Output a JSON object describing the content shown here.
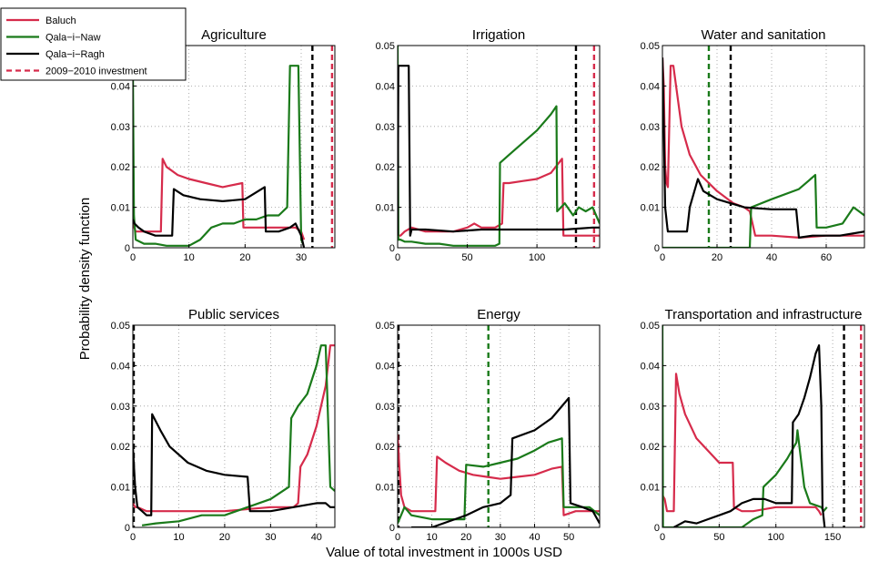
{
  "figure": {
    "ylabel": "Probability density function",
    "xlabel": "Value of total investment in 1000s USD"
  },
  "legend": {
    "entries": [
      {
        "label": "Baluch",
        "color": "#d62b4b",
        "style": "solid"
      },
      {
        "label": "Qala−i−Naw",
        "color": "#1a7a1a",
        "style": "solid"
      },
      {
        "label": "Qala−i−Ragh",
        "color": "#000000",
        "style": "solid"
      },
      {
        "label": "2009−2010 investment",
        "color": "#d62b4b",
        "style": "dashed"
      }
    ]
  },
  "chart_data": [
    {
      "type": "line",
      "title": "Agriculture",
      "xlim": [
        0,
        36
      ],
      "ylim": [
        0,
        0.05
      ],
      "xticks": [
        0,
        10,
        20,
        30
      ],
      "yticks": [
        0,
        0.01,
        0.02,
        0.03,
        0.04,
        0.05
      ],
      "yticklabels": [
        "0",
        "0.01",
        "0.02",
        "0.03",
        "0.04",
        ""
      ],
      "series": [
        {
          "name": "Baluch",
          "x": [
            0,
            0.5,
            1,
            2,
            3,
            4,
            5,
            5.3,
            6,
            8,
            10,
            13,
            16,
            19.5,
            19.7,
            22,
            25,
            28,
            29,
            30,
            30.5
          ],
          "y": [
            0.006,
            0.004,
            0.004,
            0.004,
            0.004,
            0.004,
            0.004,
            0.022,
            0.02,
            0.018,
            0.017,
            0.016,
            0.015,
            0.016,
            0.005,
            0.005,
            0.005,
            0.005,
            0.005,
            0.004,
            0.002
          ]
        },
        {
          "name": "Qala−i−Naw",
          "x": [
            0,
            0.2,
            0.5,
            2,
            4,
            6,
            8,
            10,
            12,
            14,
            16,
            18,
            20,
            22,
            24,
            26,
            27.5,
            28,
            29.5,
            30,
            30.3
          ],
          "y": [
            0.045,
            0.008,
            0.002,
            0.001,
            0.001,
            0.0005,
            0.0005,
            0.0005,
            0.002,
            0.005,
            0.006,
            0.006,
            0.007,
            0.007,
            0.008,
            0.008,
            0.01,
            0.045,
            0.045,
            0.002,
            0.001
          ]
        },
        {
          "name": "Qala−i−Ragh",
          "x": [
            0,
            0.3,
            1,
            2,
            4,
            6,
            7,
            7.3,
            9,
            12,
            16,
            20,
            23.5,
            23.7,
            26,
            28,
            29,
            30,
            30.5
          ],
          "y": [
            0.007,
            0.006,
            0.005,
            0.004,
            0.003,
            0.003,
            0.003,
            0.0145,
            0.013,
            0.012,
            0.0115,
            0.012,
            0.015,
            0.004,
            0.004,
            0.005,
            0.006,
            0.003,
            0.0
          ]
        }
      ],
      "vlines": [
        {
          "x": 32,
          "color": "#000000"
        },
        {
          "x": 35.5,
          "color": "#d62b4b"
        }
      ]
    },
    {
      "type": "line",
      "title": "Irrigation",
      "xlim": [
        0,
        145
      ],
      "ylim": [
        0,
        0.05
      ],
      "xticks": [
        0,
        50,
        100
      ],
      "yticks": [
        0,
        0.01,
        0.02,
        0.03,
        0.04,
        0.05
      ],
      "yticklabels": [
        "0",
        "0.01",
        "0.02",
        "0.03",
        "0.04",
        "0.05"
      ],
      "series": [
        {
          "name": "Baluch",
          "x": [
            0,
            2,
            5,
            10,
            20,
            30,
            40,
            50,
            55,
            60,
            65,
            70,
            75,
            76,
            80,
            90,
            100,
            110,
            118,
            119,
            125,
            135,
            145
          ],
          "y": [
            0.003,
            0.003,
            0.004,
            0.005,
            0.004,
            0.004,
            0.004,
            0.005,
            0.006,
            0.005,
            0.005,
            0.005,
            0.006,
            0.016,
            0.016,
            0.0165,
            0.017,
            0.0185,
            0.022,
            0.003,
            0.003,
            0.003,
            0.003
          ]
        },
        {
          "name": "Qala−i−Naw",
          "x": [
            0,
            0.5,
            2,
            5,
            10,
            20,
            30,
            40,
            60,
            70,
            73,
            73.5,
            80,
            90,
            100,
            110,
            114,
            114.5,
            120,
            126,
            130,
            135,
            140,
            145
          ],
          "y": [
            0.05,
            0.002,
            0.002,
            0.0015,
            0.0015,
            0.001,
            0.001,
            0.0005,
            0.0005,
            0.0005,
            0.001,
            0.021,
            0.023,
            0.026,
            0.029,
            0.033,
            0.035,
            0.009,
            0.011,
            0.008,
            0.01,
            0.009,
            0.01,
            0.006
          ]
        },
        {
          "name": "Qala−i−Ragh",
          "x": [
            0,
            0.5,
            1,
            8,
            9,
            10,
            20,
            40,
            60,
            80,
            100,
            120,
            140,
            145
          ],
          "y": [
            0.003,
            0.045,
            0.045,
            0.045,
            0.003,
            0.0045,
            0.0045,
            0.004,
            0.0045,
            0.0045,
            0.0045,
            0.0045,
            0.005,
            0.005
          ]
        }
      ],
      "vlines": [
        {
          "x": 128,
          "color": "#000000"
        },
        {
          "x": 141,
          "color": "#d62b4b"
        }
      ]
    },
    {
      "type": "line",
      "title": "Water and sanitation",
      "xlim": [
        0,
        74
      ],
      "ylim": [
        0,
        0.05
      ],
      "xticks": [
        0,
        20,
        40,
        60
      ],
      "yticks": [
        0,
        0.01,
        0.02,
        0.03,
        0.04,
        0.05
      ],
      "yticklabels": [
        "0",
        "0.01",
        "0.02",
        "0.03",
        "0.04",
        "0.05"
      ],
      "series": [
        {
          "name": "Baluch",
          "x": [
            0,
            0.5,
            1,
            1.5,
            2,
            3,
            4,
            5,
            7,
            10,
            14,
            20,
            26,
            30,
            32,
            34,
            40,
            50,
            60,
            74
          ],
          "y": [
            0.047,
            0.04,
            0.02,
            0.016,
            0.015,
            0.045,
            0.045,
            0.04,
            0.03,
            0.023,
            0.018,
            0.014,
            0.011,
            0.01,
            0.009,
            0.003,
            0.003,
            0.0025,
            0.003,
            0.003
          ]
        },
        {
          "name": "Qala−i−Naw",
          "x": [
            0,
            32,
            32.5,
            40,
            50,
            56,
            56.5,
            60,
            66,
            70,
            72,
            74
          ],
          "y": [
            0.0,
            0.0,
            0.01,
            0.012,
            0.0145,
            0.018,
            0.005,
            0.005,
            0.006,
            0.01,
            0.009,
            0.008
          ]
        },
        {
          "name": "Qala−i−Ragh",
          "x": [
            0,
            0.5,
            1,
            1.8,
            2,
            5,
            6,
            9,
            10,
            13,
            15,
            20,
            30,
            40,
            49,
            50,
            55,
            65,
            74
          ],
          "y": [
            0.047,
            0.03,
            0.01,
            0.005,
            0.004,
            0.004,
            0.004,
            0.004,
            0.01,
            0.017,
            0.014,
            0.012,
            0.01,
            0.0095,
            0.0095,
            0.0025,
            0.003,
            0.003,
            0.004
          ]
        }
      ],
      "vlines": [
        {
          "x": 17,
          "color": "#1a7a1a"
        },
        {
          "x": 25,
          "color": "#000000"
        }
      ]
    },
    {
      "type": "line",
      "title": "Public services",
      "xlim": [
        0,
        44
      ],
      "ylim": [
        0,
        0.05
      ],
      "xticks": [
        0,
        10,
        20,
        30,
        40
      ],
      "yticks": [
        0,
        0.01,
        0.02,
        0.03,
        0.04,
        0.05
      ],
      "yticklabels": [
        "0",
        "0.01",
        "0.02",
        "0.03",
        "0.04",
        "0.05"
      ],
      "series": [
        {
          "name": "Baluch",
          "x": [
            0,
            0.5,
            1,
            3,
            5,
            10,
            20,
            30,
            35,
            36,
            36.5,
            38,
            40,
            42,
            43,
            44
          ],
          "y": [
            0.006,
            0.005,
            0.005,
            0.004,
            0.004,
            0.004,
            0.004,
            0.005,
            0.005,
            0.006,
            0.015,
            0.018,
            0.025,
            0.035,
            0.045,
            0.045
          ]
        },
        {
          "name": "Qala−i−Naw",
          "x": [
            2,
            5,
            10,
            15,
            20,
            25,
            30,
            34,
            34.5,
            36,
            38,
            40,
            41,
            42,
            43,
            44
          ],
          "y": [
            0.0005,
            0.001,
            0.0015,
            0.003,
            0.003,
            0.005,
            0.007,
            0.01,
            0.027,
            0.03,
            0.033,
            0.04,
            0.045,
            0.045,
            0.01,
            0.009
          ]
        },
        {
          "name": "Qala−i−Ragh",
          "x": [
            0,
            0.5,
            1,
            2,
            3,
            4,
            4.2,
            6,
            8,
            12,
            16,
            20,
            25,
            25.5,
            30,
            35,
            40,
            42,
            43,
            44
          ],
          "y": [
            0.02,
            0.01,
            0.005,
            0.004,
            0.003,
            0.003,
            0.028,
            0.024,
            0.02,
            0.016,
            0.014,
            0.013,
            0.0125,
            0.004,
            0.004,
            0.005,
            0.006,
            0.006,
            0.005,
            0.005
          ]
        }
      ],
      "vlines": [
        {
          "x": 0,
          "color": "#000000"
        }
      ]
    },
    {
      "type": "line",
      "title": "Energy",
      "xlim": [
        0,
        59
      ],
      "ylim": [
        0,
        0.05
      ],
      "xticks": [
        0,
        10,
        20,
        30,
        40,
        50
      ],
      "yticks": [
        0,
        0.01,
        0.02,
        0.03,
        0.04,
        0.05
      ],
      "yticklabels": [
        "0",
        "0.01",
        "0.02",
        "0.03",
        "0.04",
        "0.05"
      ],
      "series": [
        {
          "name": "Baluch",
          "x": [
            0,
            0.5,
            1,
            2,
            4,
            8,
            11,
            11.5,
            14,
            18,
            22,
            26,
            30,
            35,
            40,
            45,
            48,
            48.5,
            52,
            56,
            59
          ],
          "y": [
            0.023,
            0.015,
            0.008,
            0.005,
            0.004,
            0.004,
            0.004,
            0.0175,
            0.016,
            0.014,
            0.013,
            0.0125,
            0.012,
            0.0125,
            0.013,
            0.0145,
            0.015,
            0.003,
            0.004,
            0.004,
            0.004
          ]
        },
        {
          "name": "Qala−i−Naw",
          "x": [
            0,
            1,
            2,
            4,
            10,
            15,
            19.5,
            20,
            25,
            30,
            35,
            40,
            44,
            48,
            48.5,
            52,
            56,
            59
          ],
          "y": [
            0.001,
            0.003,
            0.005,
            0.003,
            0.002,
            0.002,
            0.002,
            0.0155,
            0.015,
            0.016,
            0.017,
            0.019,
            0.021,
            0.022,
            0.005,
            0.005,
            0.005,
            0.003
          ]
        },
        {
          "name": "Qala−i−Ragh",
          "x": [
            4,
            10,
            20,
            25,
            30,
            33,
            33.5,
            40,
            45,
            49,
            50,
            50.5,
            54,
            57,
            59
          ],
          "y": [
            0.0,
            0.0,
            0.003,
            0.005,
            0.006,
            0.008,
            0.022,
            0.024,
            0.027,
            0.031,
            0.032,
            0.006,
            0.005,
            0.004,
            0.001
          ]
        }
      ],
      "vlines": [
        {
          "x": 0,
          "color": "#000000"
        },
        {
          "x": 26.5,
          "color": "#1a7a1a"
        }
      ]
    },
    {
      "type": "line",
      "title": "Transportation and infrastructure",
      "xlim": [
        0,
        178
      ],
      "ylim": [
        0,
        0.05
      ],
      "xticks": [
        0,
        50,
        100,
        150
      ],
      "yticks": [
        0,
        0.01,
        0.02,
        0.03,
        0.04,
        0.05
      ],
      "yticklabels": [
        "0",
        "0.01",
        "0.02",
        "0.03",
        "0.04",
        "0.05"
      ],
      "series": [
        {
          "name": "Baluch",
          "x": [
            0,
            2,
            4,
            8,
            10,
            12,
            15,
            20,
            30,
            40,
            50,
            62,
            63,
            70,
            80,
            100,
            120,
            130,
            135,
            138,
            140
          ],
          "y": [
            0.008,
            0.007,
            0.004,
            0.004,
            0.004,
            0.038,
            0.033,
            0.028,
            0.022,
            0.019,
            0.016,
            0.016,
            0.005,
            0.004,
            0.004,
            0.005,
            0.005,
            0.005,
            0.005,
            0.004,
            0.003
          ]
        },
        {
          "name": "Qala−i−Naw",
          "x": [
            0,
            0.5,
            70,
            80,
            88,
            89,
            100,
            110,
            118,
            119,
            125,
            130,
            140,
            142,
            145
          ],
          "y": [
            0.05,
            0.0,
            0.0,
            0.002,
            0.003,
            0.01,
            0.013,
            0.017,
            0.021,
            0.024,
            0.01,
            0.006,
            0.005,
            0.004,
            0.005
          ]
        },
        {
          "name": "Qala−i−Ragh",
          "x": [
            10,
            20,
            30,
            40,
            50,
            60,
            70,
            80,
            90,
            100,
            110,
            114,
            115,
            120,
            125,
            130,
            135,
            138,
            140,
            141,
            143
          ],
          "y": [
            0.0,
            0.0015,
            0.001,
            0.002,
            0.003,
            0.004,
            0.006,
            0.007,
            0.007,
            0.006,
            0.006,
            0.006,
            0.026,
            0.028,
            0.032,
            0.037,
            0.043,
            0.045,
            0.03,
            0.005,
            0.0
          ]
        }
      ],
      "vlines": [
        {
          "x": 160,
          "color": "#000000"
        },
        {
          "x": 175,
          "color": "#d62b4b"
        }
      ]
    }
  ]
}
